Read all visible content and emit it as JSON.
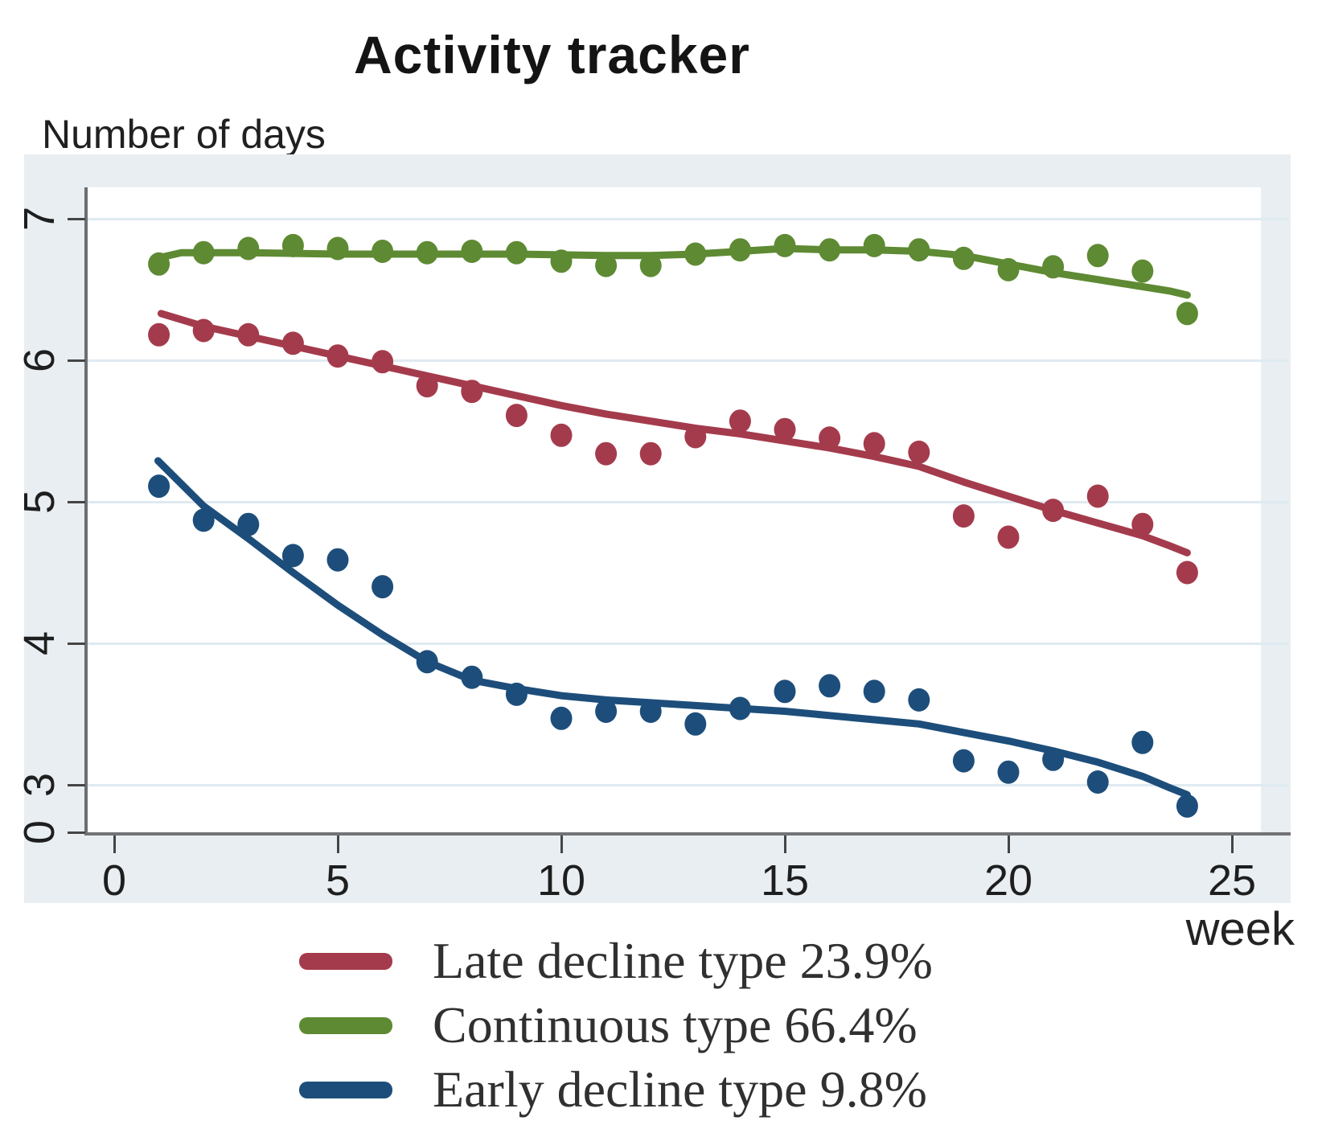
{
  "title": "Activity tracker",
  "y_axis": {
    "label": "Number of days",
    "ticks": [
      "7",
      "6",
      "5",
      "4",
      "3",
      "0"
    ]
  },
  "x_axis": {
    "label": "week",
    "ticks": [
      "0",
      "5",
      "10",
      "15",
      "20",
      "25"
    ]
  },
  "legend": [
    {
      "label": "Late decline type 23.9%",
      "color": "#a43b4c"
    },
    {
      "label": "Continuous type 66.4%",
      "color": "#5e8a33"
    },
    {
      "label": "Early decline type 9.8%",
      "color": "#1d4e7b"
    }
  ],
  "colors": {
    "late_decline": "#a43b4c",
    "continuous": "#5e8a33",
    "early_decline": "#1d4e7b",
    "plot_background": "#e8eef1",
    "gridline": "#dfeaf1",
    "axis": "#6d6e70"
  },
  "chart_data": {
    "type": "scatter",
    "title": "Activity tracker",
    "xlabel": "week",
    "ylabel": "Number of days",
    "x_ticks": [
      0,
      5,
      10,
      15,
      20,
      25
    ],
    "y_ticks": [
      7,
      6,
      5,
      4,
      3,
      0
    ],
    "xlim": [
      0,
      26
    ],
    "ylim_note": "y axis labeled 0 at baseline then 3 to 7 (compressed below 3)",
    "grid": "horizontal",
    "legend_position": "bottom",
    "x": [
      1,
      2,
      3,
      4,
      5,
      6,
      7,
      8,
      9,
      10,
      11,
      12,
      13,
      14,
      15,
      16,
      17,
      18,
      19,
      20,
      21,
      22,
      23,
      24
    ],
    "series": [
      {
        "name": "Late decline type 23.9%",
        "color": "#a43b4c",
        "marker": "dot",
        "values": [
          6.18,
          6.21,
          6.18,
          6.12,
          6.03,
          5.99,
          5.82,
          5.78,
          5.61,
          5.47,
          5.34,
          5.34,
          5.46,
          5.57,
          5.51,
          5.45,
          5.41,
          5.35,
          4.9,
          4.75,
          4.94,
          5.04,
          4.84,
          4.5
        ],
        "trend": [
          [
            1.05,
            6.33
          ],
          [
            2,
            6.24
          ],
          [
            3,
            6.17
          ],
          [
            4,
            6.1
          ],
          [
            5,
            6.03
          ],
          [
            6,
            5.96
          ],
          [
            7,
            5.89
          ],
          [
            8,
            5.82
          ],
          [
            9,
            5.75
          ],
          [
            10,
            5.68
          ],
          [
            11,
            5.62
          ],
          [
            12,
            5.57
          ],
          [
            13,
            5.52
          ],
          [
            14,
            5.48
          ],
          [
            15,
            5.43
          ],
          [
            16,
            5.38
          ],
          [
            17,
            5.32
          ],
          [
            18,
            5.25
          ],
          [
            19,
            5.14
          ],
          [
            20,
            5.04
          ],
          [
            21,
            4.94
          ],
          [
            22,
            4.85
          ],
          [
            23,
            4.76
          ],
          [
            23.6,
            4.69
          ],
          [
            24,
            4.64
          ]
        ]
      },
      {
        "name": "Continuous type 66.4%",
        "color": "#5e8a33",
        "marker": "dot",
        "values": [
          6.68,
          6.76,
          6.79,
          6.81,
          6.79,
          6.77,
          6.76,
          6.77,
          6.76,
          6.7,
          6.67,
          6.67,
          6.75,
          6.78,
          6.81,
          6.78,
          6.81,
          6.78,
          6.72,
          6.64,
          6.66,
          6.74,
          6.63,
          6.33
        ],
        "trend": [
          [
            0.95,
            6.72
          ],
          [
            1.5,
            6.76
          ],
          [
            3,
            6.76
          ],
          [
            5,
            6.75
          ],
          [
            7,
            6.75
          ],
          [
            9,
            6.75
          ],
          [
            11,
            6.74
          ],
          [
            12,
            6.74
          ],
          [
            13,
            6.75
          ],
          [
            14,
            6.77
          ],
          [
            15,
            6.79
          ],
          [
            16,
            6.78
          ],
          [
            17,
            6.78
          ],
          [
            18,
            6.77
          ],
          [
            19,
            6.74
          ],
          [
            20,
            6.68
          ],
          [
            21,
            6.62
          ],
          [
            22,
            6.57
          ],
          [
            23,
            6.52
          ],
          [
            23.6,
            6.49
          ],
          [
            24,
            6.46
          ]
        ]
      },
      {
        "name": "Early decline type 9.8%",
        "color": "#1d4e7b",
        "marker": "dot",
        "values": [
          5.11,
          4.87,
          4.84,
          4.62,
          4.59,
          4.4,
          3.87,
          3.76,
          3.64,
          3.47,
          3.52,
          3.52,
          3.43,
          3.54,
          3.66,
          3.7,
          3.66,
          3.6,
          3.17,
          3.09,
          3.18,
          3.02,
          3.3,
          2.85
        ],
        "trend": [
          [
            0.98,
            5.29
          ],
          [
            2,
            4.97
          ],
          [
            3,
            4.74
          ],
          [
            4,
            4.5
          ],
          [
            5,
            4.27
          ],
          [
            6,
            4.06
          ],
          [
            7,
            3.87
          ],
          [
            8,
            3.74
          ],
          [
            9,
            3.68
          ],
          [
            10,
            3.63
          ],
          [
            11,
            3.6
          ],
          [
            12,
            3.58
          ],
          [
            13,
            3.56
          ],
          [
            14,
            3.54
          ],
          [
            15,
            3.52
          ],
          [
            16,
            3.49
          ],
          [
            17,
            3.46
          ],
          [
            18,
            3.43
          ],
          [
            19,
            3.37
          ],
          [
            20,
            3.31
          ],
          [
            21,
            3.24
          ],
          [
            22,
            3.16
          ],
          [
            23,
            3.06
          ],
          [
            23.6,
            2.98
          ],
          [
            24,
            2.93
          ]
        ]
      }
    ]
  }
}
